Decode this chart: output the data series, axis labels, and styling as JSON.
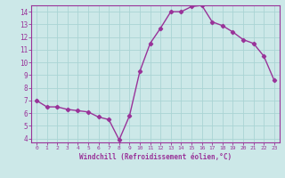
{
  "x": [
    0,
    1,
    2,
    3,
    4,
    5,
    6,
    7,
    8,
    9,
    10,
    11,
    12,
    13,
    14,
    15,
    16,
    17,
    18,
    19,
    20,
    21,
    22,
    23
  ],
  "y": [
    7.0,
    6.5,
    6.5,
    6.3,
    6.2,
    6.1,
    5.7,
    5.5,
    3.9,
    5.8,
    9.3,
    11.5,
    12.7,
    14.0,
    14.0,
    14.4,
    14.5,
    13.2,
    12.9,
    12.4,
    11.8,
    11.5,
    10.5,
    8.6
  ],
  "line_color": "#993399",
  "marker": "D",
  "markersize": 2.2,
  "linewidth": 1.0,
  "bg_color": "#cce8e8",
  "grid_color": "#aad4d4",
  "xlabel": "Windchill (Refroidissement éolien,°C)",
  "xlabel_color": "#993399",
  "tick_color": "#993399",
  "axis_color": "#993399",
  "xlim": [
    -0.5,
    23.5
  ],
  "ylim": [
    3.7,
    14.5
  ],
  "yticks": [
    4,
    5,
    6,
    7,
    8,
    9,
    10,
    11,
    12,
    13,
    14
  ],
  "xticks": [
    0,
    1,
    2,
    3,
    4,
    5,
    6,
    7,
    8,
    9,
    10,
    11,
    12,
    13,
    14,
    15,
    16,
    17,
    18,
    19,
    20,
    21,
    22,
    23
  ],
  "font_family": "monospace",
  "xtick_fontsize": 4.5,
  "ytick_fontsize": 5.5,
  "xlabel_fontsize": 5.5
}
